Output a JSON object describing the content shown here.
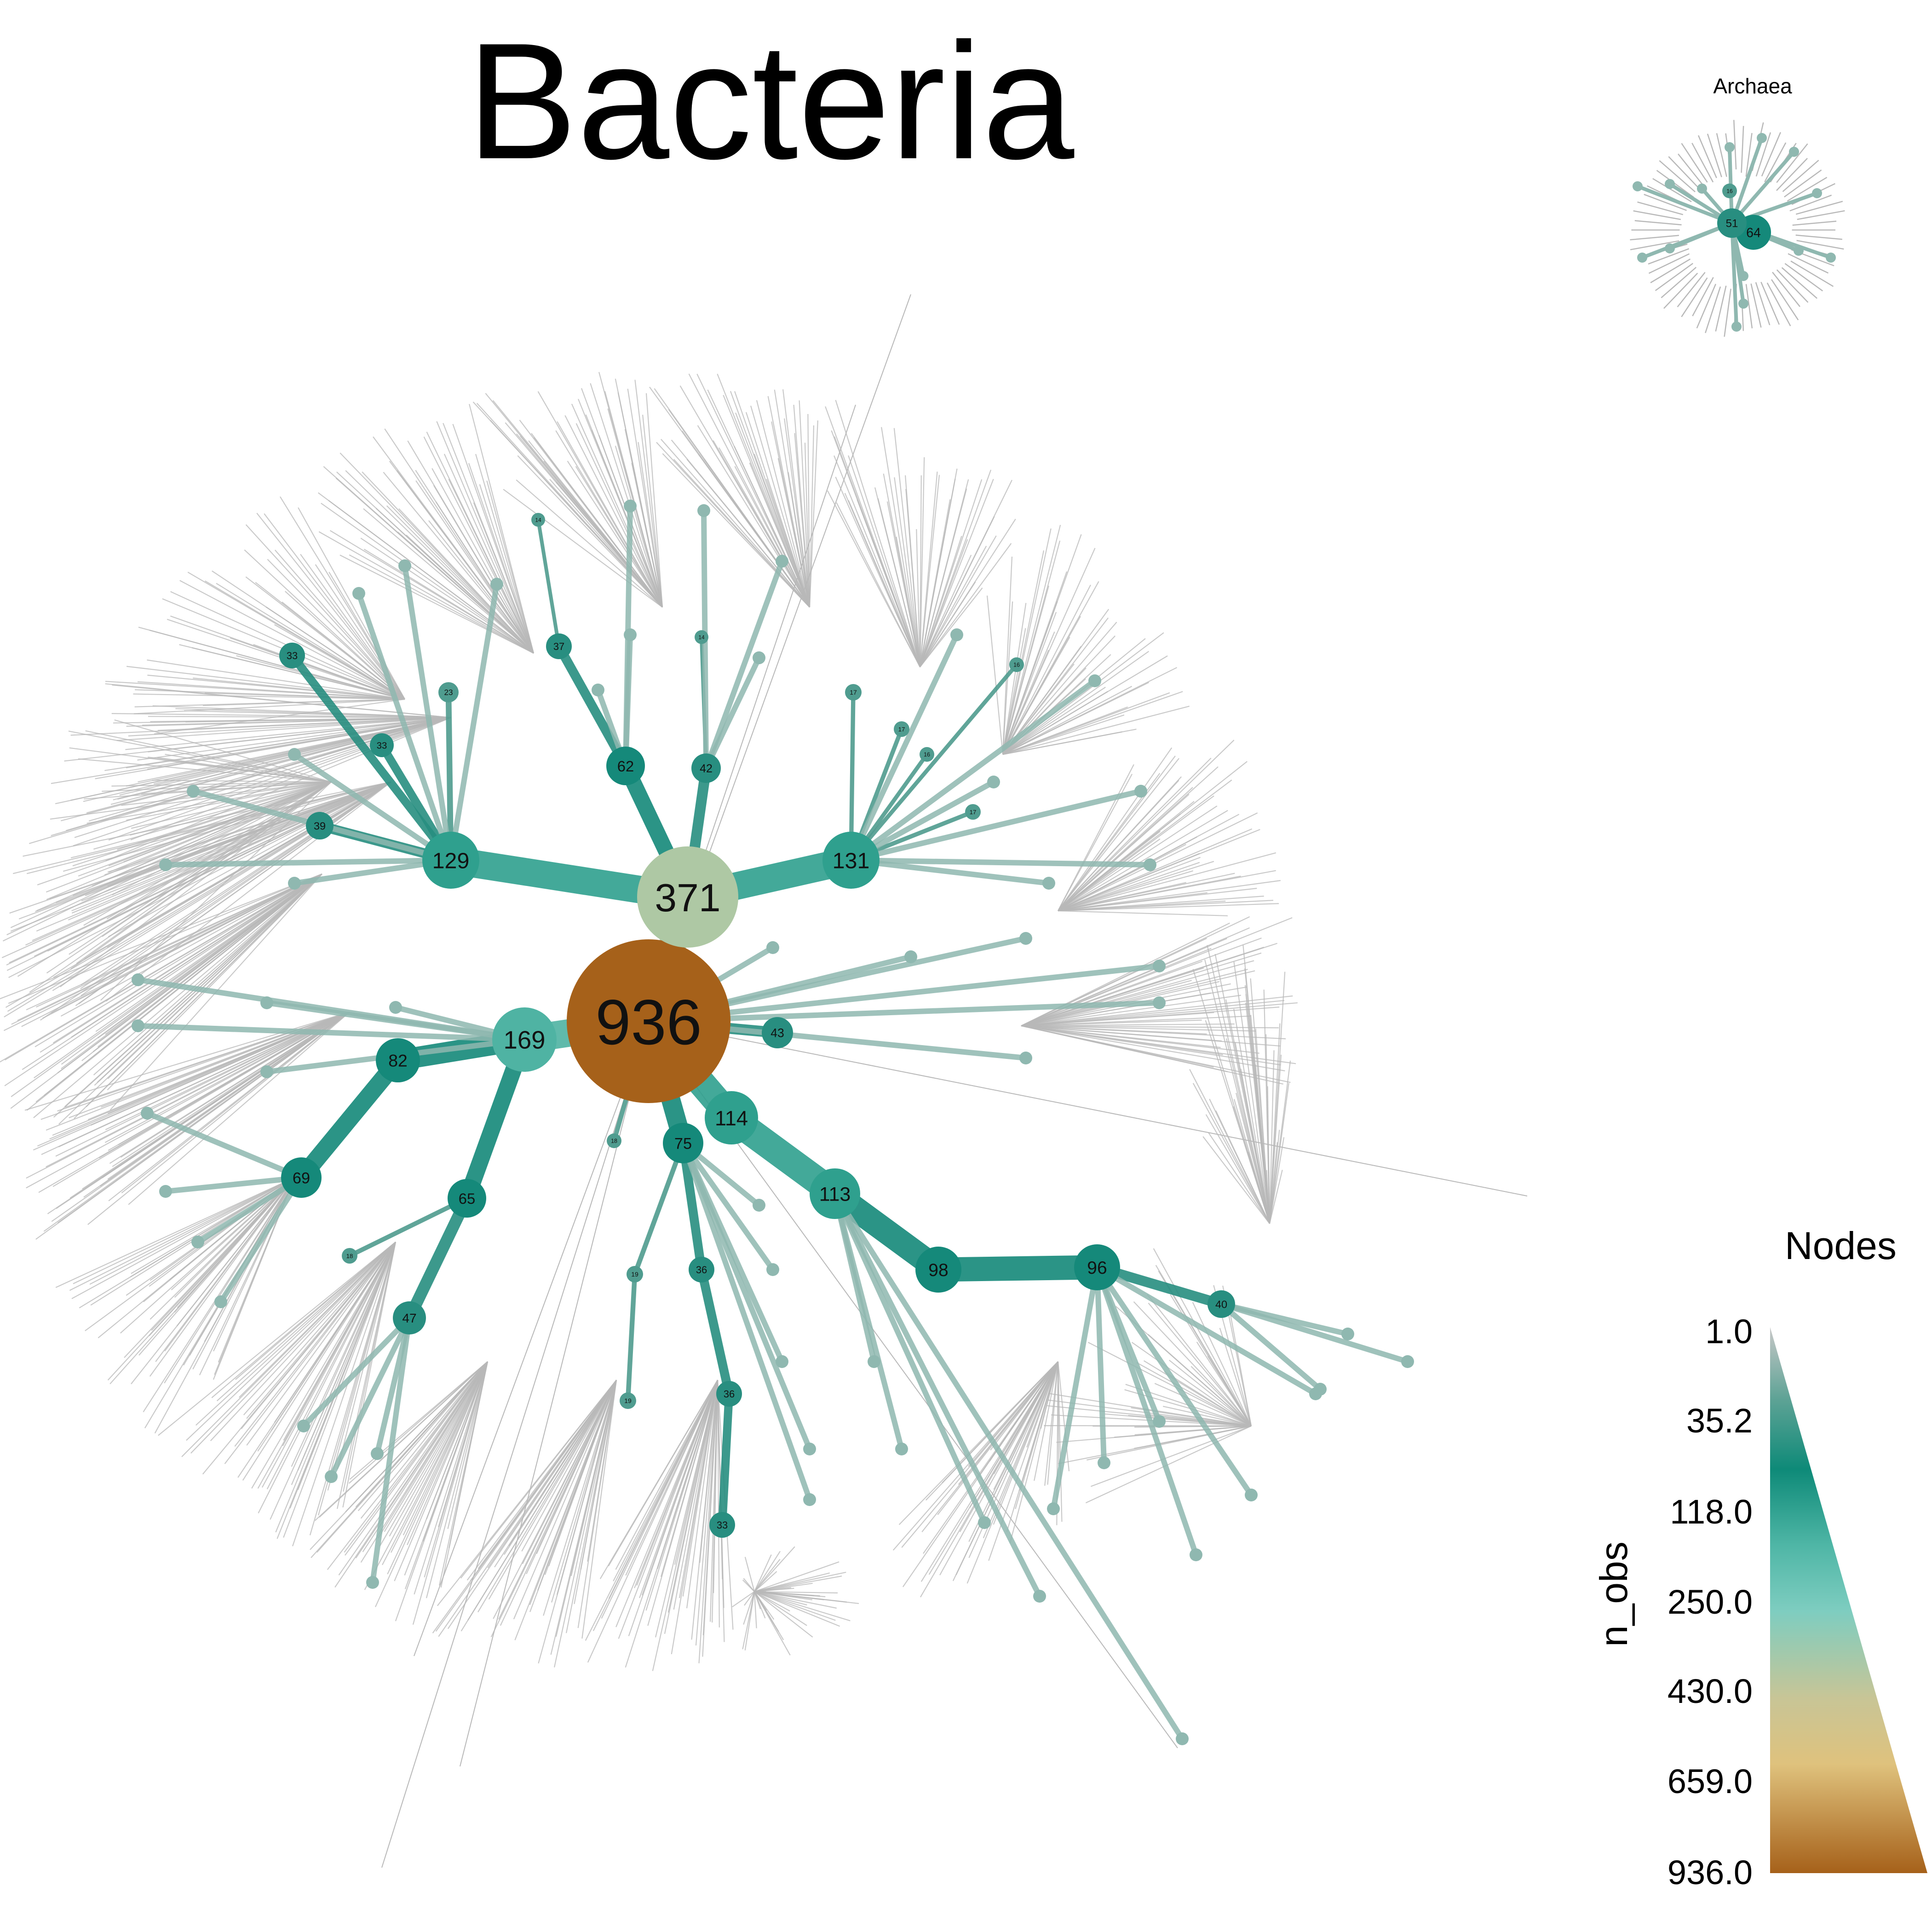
{
  "title": "Bacteria",
  "inset_title": "Archaea",
  "legend": {
    "title": "Nodes",
    "axis_label": "n_obs",
    "ticks": [
      "1.0",
      "35.2",
      "118.0",
      "250.0",
      "430.0",
      "659.0",
      "936.0"
    ]
  },
  "colors": {
    "leaf": "#b8b8b8",
    "low": "#8fb8b0",
    "mid": "#15897a",
    "high": "#7ecdc0",
    "tan": "#dfc27d",
    "root": "#a6611a"
  },
  "bacteria_tree": {
    "root": {
      "label": "936",
      "n_obs": 936
    },
    "labeled_nodes": [
      {
        "label": "371",
        "n_obs": 371
      },
      {
        "label": "169",
        "n_obs": 169
      },
      {
        "label": "131",
        "n_obs": 131
      },
      {
        "label": "129",
        "n_obs": 129
      },
      {
        "label": "114",
        "n_obs": 114
      },
      {
        "label": "113",
        "n_obs": 113
      },
      {
        "label": "98",
        "n_obs": 98
      },
      {
        "label": "96",
        "n_obs": 96
      },
      {
        "label": "82",
        "n_obs": 82
      },
      {
        "label": "75",
        "n_obs": 75
      },
      {
        "label": "69",
        "n_obs": 69
      },
      {
        "label": "65",
        "n_obs": 65
      },
      {
        "label": "62",
        "n_obs": 62
      },
      {
        "label": "47",
        "n_obs": 47
      },
      {
        "label": "43",
        "n_obs": 43
      },
      {
        "label": "42",
        "n_obs": 42
      },
      {
        "label": "40",
        "n_obs": 40
      },
      {
        "label": "39",
        "n_obs": 39
      },
      {
        "label": "37",
        "n_obs": 37
      },
      {
        "label": "36",
        "n_obs": 36
      },
      {
        "label": "36",
        "n_obs": 36
      },
      {
        "label": "33",
        "n_obs": 33
      },
      {
        "label": "33",
        "n_obs": 33
      },
      {
        "label": "33",
        "n_obs": 33
      },
      {
        "label": "23",
        "n_obs": 23
      },
      {
        "label": "19",
        "n_obs": 19
      },
      {
        "label": "19",
        "n_obs": 19
      },
      {
        "label": "18",
        "n_obs": 18
      },
      {
        "label": "18",
        "n_obs": 18
      },
      {
        "label": "17",
        "n_obs": 17
      },
      {
        "label": "17",
        "n_obs": 17
      },
      {
        "label": "17",
        "n_obs": 17
      },
      {
        "label": "16",
        "n_obs": 16
      },
      {
        "label": "16",
        "n_obs": 16
      },
      {
        "label": "14",
        "n_obs": 14
      },
      {
        "label": "14",
        "n_obs": 14
      }
    ]
  },
  "archaea_tree": {
    "labeled_nodes": [
      {
        "label": "64",
        "n_obs": 64
      },
      {
        "label": "51",
        "n_obs": 51
      },
      {
        "label": "16",
        "n_obs": 16
      }
    ]
  }
}
